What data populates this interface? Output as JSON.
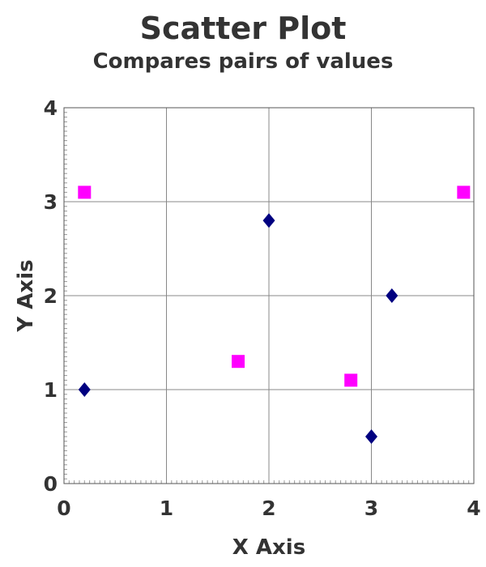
{
  "chart_data": {
    "type": "scatter",
    "title": "Scatter Plot",
    "subtitle": "Compares pairs of values",
    "xlabel": "X Axis",
    "ylabel": "Y Axis",
    "xlim": [
      0,
      4
    ],
    "ylim": [
      0,
      4
    ],
    "xticks": [
      "0",
      "1",
      "2",
      "3",
      "4"
    ],
    "yticks": [
      "0",
      "1",
      "2",
      "3",
      "4"
    ],
    "grid": true,
    "series": [
      {
        "marker": "diamond",
        "color": "#000080",
        "points": [
          {
            "x": 0.2,
            "y": 1.0
          },
          {
            "x": 2.0,
            "y": 2.8
          },
          {
            "x": 3.0,
            "y": 0.5
          },
          {
            "x": 3.2,
            "y": 2.0
          }
        ]
      },
      {
        "marker": "square",
        "color": "#ff00ff",
        "points": [
          {
            "x": 0.2,
            "y": 3.1
          },
          {
            "x": 1.7,
            "y": 1.3
          },
          {
            "x": 2.8,
            "y": 1.1
          },
          {
            "x": 3.9,
            "y": 3.1
          }
        ]
      }
    ]
  }
}
